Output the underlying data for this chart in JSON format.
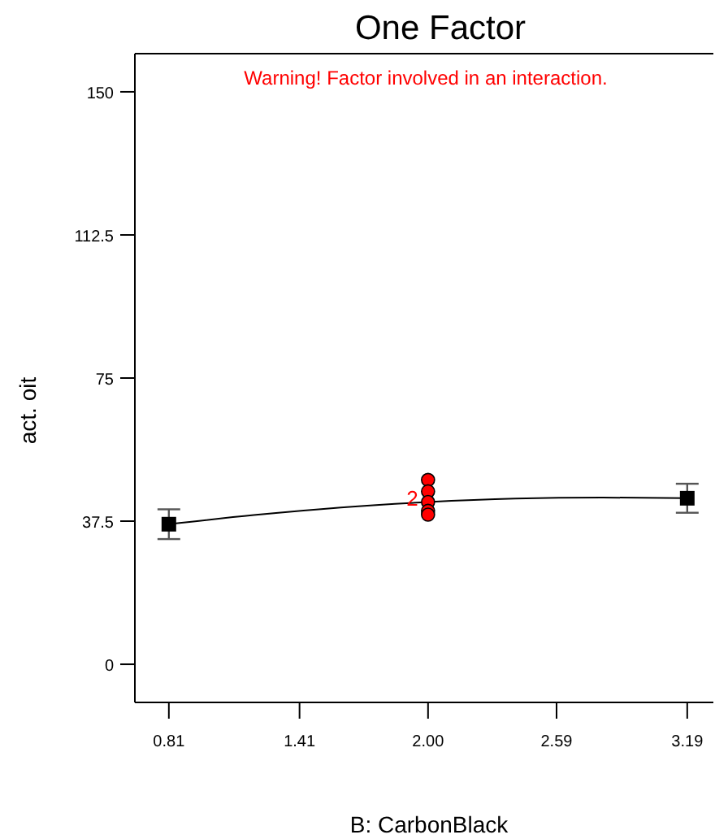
{
  "chart_data": {
    "type": "line",
    "title": "One Factor",
    "xlabel": "B: CarbonBlack",
    "ylabel": "act. oit",
    "annotations": [
      "Warning! Factor involved in an interaction.",
      {
        "text": "2",
        "x": 2.0,
        "y": 42.5
      }
    ],
    "xlim": [
      0.654,
      3.31
    ],
    "xticks": [
      0.81,
      1.41,
      {
        "value": 2,
        "label": "2.00"
      },
      2.59,
      3.19
    ],
    "ylim": [
      -10,
      160
    ],
    "yticks": [
      0,
      37.5,
      75,
      112.5,
      150
    ],
    "grid": false,
    "series": [
      {
        "color": "#000000",
        "marker": "none",
        "x": [
          0.81,
          1.2,
          1.6,
          2.0,
          2.4,
          2.8,
          3.19
        ],
        "values": [
          36.7,
          39.1,
          41.1,
          42.5,
          43.4,
          43.7,
          43.5
        ]
      },
      {
        "type": "scatter",
        "color": "#000000",
        "marker": "square",
        "x": [
          0.81,
          3.19
        ],
        "values": [
          36.7,
          43.5
        ],
        "errors": [
          3.9,
          3.8
        ]
      },
      {
        "type": "scatter",
        "color": "#ff0000",
        "marker": "circle",
        "x": [
          2.0,
          2.0,
          2.0,
          2.0,
          2.0
        ],
        "values": [
          48.3,
          45.3,
          42.5,
          40.2,
          39.2
        ]
      }
    ]
  }
}
